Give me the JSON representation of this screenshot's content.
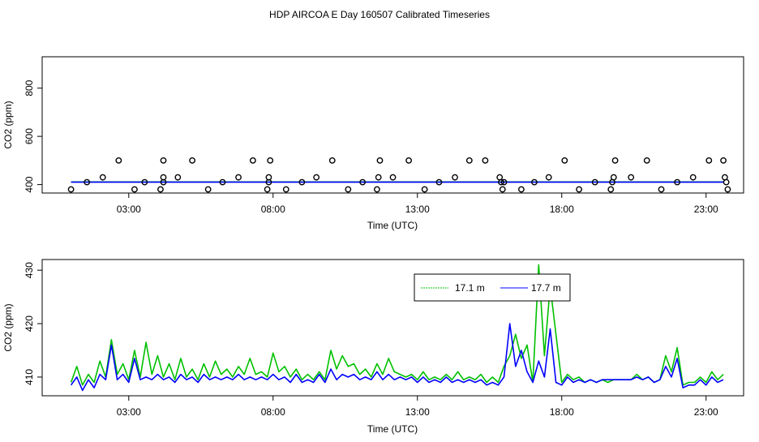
{
  "chart_data": [
    {
      "type": "scatter",
      "title": "HDP AIRCOA E  Day 160507  Calibrated Timeseries",
      "xlabel": "Time (UTC)",
      "ylabel": "CO2 (ppm)",
      "xlim": [
        0,
        24.3
      ],
      "ylim": [
        365,
        930
      ],
      "x_ticks": [
        3,
        8,
        13,
        18,
        23
      ],
      "x_tick_labels": [
        "03:00",
        "08:00",
        "13:00",
        "18:00",
        "23:00"
      ],
      "y_ticks": [
        400,
        600,
        800
      ],
      "y_tick_labels": [
        "400",
        "600",
        "800"
      ],
      "calibration_points": {
        "x": [
          1.0,
          1.55,
          2.1,
          2.65,
          3.2,
          3.55,
          4.1,
          4.2,
          4.2,
          4.2,
          4.7,
          5.2,
          5.75,
          6.25,
          6.8,
          7.3,
          7.8,
          7.85,
          7.85,
          7.9,
          8.45,
          9.0,
          9.5,
          10.05,
          10.6,
          11.1,
          11.6,
          11.65,
          11.7,
          12.15,
          12.7,
          13.25,
          13.75,
          14.3,
          14.8,
          15.35,
          15.85,
          15.9,
          15.95,
          16.0,
          16.6,
          17.05,
          17.55,
          18.1,
          18.6,
          19.15,
          19.7,
          19.75,
          19.8,
          19.85,
          20.4,
          20.95,
          21.45,
          22.0,
          22.55,
          23.1,
          23.6,
          23.65,
          23.7,
          23.75
        ],
        "y": [
          380,
          410,
          430,
          500,
          380,
          410,
          380,
          410,
          430,
          500,
          430,
          500,
          380,
          410,
          430,
          500,
          380,
          410,
          430,
          500,
          380,
          410,
          430,
          500,
          380,
          410,
          380,
          430,
          500,
          430,
          500,
          380,
          410,
          430,
          500,
          500,
          430,
          410,
          380,
          410,
          380,
          410,
          430,
          500,
          380,
          410,
          380,
          410,
          430,
          500,
          430,
          500,
          380,
          410,
          430,
          500,
          500,
          430,
          410,
          380
        ]
      },
      "series": [
        {
          "name": "17.1 m",
          "color": "#00c000",
          "x": [
            1,
            23.6
          ],
          "y": [
            411,
            411
          ]
        },
        {
          "name": "17.7 m",
          "color": "#0000ff",
          "x": [
            1,
            23.6
          ],
          "y": [
            410,
            410
          ]
        }
      ]
    },
    {
      "type": "line",
      "title": "",
      "xlabel": "Time (UTC)",
      "ylabel": "CO2 (ppm)",
      "xlim": [
        0,
        24.3
      ],
      "ylim": [
        406.5,
        432
      ],
      "x_ticks": [
        3,
        8,
        13,
        18,
        23
      ],
      "x_tick_labels": [
        "03:00",
        "08:00",
        "13:00",
        "18:00",
        "23:00"
      ],
      "y_ticks": [
        410,
        420,
        430
      ],
      "y_tick_labels": [
        "410",
        "420",
        "430"
      ],
      "legend": "top-center",
      "series": [
        {
          "name": "17.1 m",
          "color": "#00c000",
          "x": [
            1.0,
            1.2,
            1.4,
            1.6,
            1.8,
            2.0,
            2.2,
            2.4,
            2.6,
            2.8,
            3.0,
            3.2,
            3.4,
            3.6,
            3.8,
            4.0,
            4.2,
            4.4,
            4.6,
            4.8,
            5.0,
            5.2,
            5.4,
            5.6,
            5.8,
            6.0,
            6.2,
            6.4,
            6.6,
            6.8,
            7.0,
            7.2,
            7.4,
            7.6,
            7.8,
            8.0,
            8.2,
            8.4,
            8.6,
            8.8,
            9.0,
            9.2,
            9.4,
            9.6,
            9.8,
            10.0,
            10.2,
            10.4,
            10.6,
            10.8,
            11.0,
            11.2,
            11.4,
            11.6,
            11.8,
            12.0,
            12.2,
            12.4,
            12.6,
            12.8,
            13.0,
            13.2,
            13.4,
            13.6,
            13.8,
            14.0,
            14.2,
            14.4,
            14.6,
            14.8,
            15.0,
            15.2,
            15.4,
            15.6,
            15.8,
            16.0,
            16.2,
            16.4,
            16.6,
            16.8,
            17.0,
            17.2,
            17.4,
            17.6,
            17.8,
            18.0,
            18.2,
            18.4,
            18.6,
            18.8,
            19.0,
            19.2,
            19.4,
            19.6,
            19.8,
            20.0,
            20.2,
            20.4,
            20.6,
            20.8,
            21.0,
            21.2,
            21.4,
            21.6,
            21.8,
            22.0,
            22.2,
            22.4,
            22.6,
            22.8,
            23.0,
            23.2,
            23.4,
            23.6
          ],
          "y": [
            409.0,
            412.0,
            408.5,
            410.5,
            409.0,
            413.0,
            410.0,
            417.0,
            410.5,
            412.5,
            409.5,
            415.0,
            410.0,
            416.5,
            410.5,
            414.0,
            410.0,
            412.5,
            409.5,
            413.5,
            410.0,
            411.5,
            409.5,
            412.5,
            410.0,
            413.0,
            410.5,
            411.5,
            410.0,
            412.0,
            410.5,
            413.5,
            410.5,
            411.0,
            410.0,
            414.5,
            411.0,
            412.0,
            410.0,
            411.5,
            409.5,
            410.5,
            409.5,
            411.0,
            409.5,
            415.0,
            411.5,
            414.0,
            412.0,
            412.5,
            410.5,
            411.5,
            410.0,
            412.5,
            410.5,
            413.5,
            411.0,
            410.5,
            410.0,
            410.5,
            409.5,
            411.0,
            409.5,
            410.0,
            409.5,
            410.5,
            409.5,
            411.0,
            409.5,
            410.0,
            409.5,
            410.5,
            409.0,
            410.0,
            409.0,
            412.0,
            414.0,
            418.0,
            413.5,
            416.0,
            409.0,
            431.0,
            414.0,
            427.0,
            418.0,
            409.0,
            410.5,
            409.5,
            410.0,
            409.0,
            409.5,
            409.0,
            409.5,
            409.0,
            409.5,
            409.5,
            409.5,
            409.5,
            410.5,
            409.5,
            410.0,
            409.0,
            409.5,
            414.0,
            411.0,
            415.5,
            408.5,
            409.0,
            409.0,
            410.0,
            409.0,
            411.0,
            409.5,
            410.5
          ]
        },
        {
          "name": "17.7 m",
          "color": "#0000ff",
          "x": [
            1.0,
            1.2,
            1.4,
            1.6,
            1.8,
            2.0,
            2.2,
            2.4,
            2.6,
            2.8,
            3.0,
            3.2,
            3.4,
            3.6,
            3.8,
            4.0,
            4.2,
            4.4,
            4.6,
            4.8,
            5.0,
            5.2,
            5.4,
            5.6,
            5.8,
            6.0,
            6.2,
            6.4,
            6.6,
            6.8,
            7.0,
            7.2,
            7.4,
            7.6,
            7.8,
            8.0,
            8.2,
            8.4,
            8.6,
            8.8,
            9.0,
            9.2,
            9.4,
            9.6,
            9.8,
            10.0,
            10.2,
            10.4,
            10.6,
            10.8,
            11.0,
            11.2,
            11.4,
            11.6,
            11.8,
            12.0,
            12.2,
            12.4,
            12.6,
            12.8,
            13.0,
            13.2,
            13.4,
            13.6,
            13.8,
            14.0,
            14.2,
            14.4,
            14.6,
            14.8,
            15.0,
            15.2,
            15.4,
            15.6,
            15.8,
            16.0,
            16.2,
            16.4,
            16.6,
            16.8,
            17.0,
            17.2,
            17.4,
            17.6,
            17.8,
            18.0,
            18.2,
            18.4,
            18.6,
            18.8,
            19.0,
            19.2,
            19.4,
            19.6,
            19.8,
            20.0,
            20.2,
            20.4,
            20.6,
            20.8,
            21.0,
            21.2,
            21.4,
            21.6,
            21.8,
            22.0,
            22.2,
            22.4,
            22.6,
            22.8,
            23.0,
            23.2,
            23.4,
            23.6
          ],
          "y": [
            408.5,
            410.0,
            407.5,
            409.5,
            408.0,
            410.5,
            409.5,
            416.0,
            409.5,
            410.5,
            409.0,
            413.5,
            409.5,
            410.0,
            409.5,
            410.5,
            409.5,
            410.0,
            409.0,
            410.5,
            409.5,
            410.0,
            409.0,
            410.5,
            409.5,
            410.0,
            409.5,
            410.0,
            409.5,
            410.5,
            409.5,
            410.0,
            409.5,
            410.0,
            409.5,
            410.5,
            409.5,
            410.0,
            409.0,
            410.5,
            409.0,
            409.5,
            409.0,
            410.5,
            409.0,
            411.5,
            409.5,
            410.5,
            410.0,
            410.5,
            409.5,
            410.0,
            409.5,
            411.0,
            409.5,
            410.5,
            409.5,
            410.0,
            409.5,
            410.0,
            409.0,
            410.0,
            409.0,
            409.5,
            409.0,
            410.0,
            409.0,
            409.5,
            409.0,
            409.5,
            409.0,
            409.5,
            408.5,
            409.0,
            408.5,
            410.0,
            420.0,
            412.0,
            415.0,
            411.0,
            409.0,
            413.0,
            410.0,
            419.0,
            409.0,
            408.5,
            410.0,
            409.0,
            409.5,
            409.0,
            409.5,
            409.0,
            409.5,
            409.5,
            409.5,
            409.5,
            409.5,
            409.5,
            410.0,
            409.5,
            410.0,
            409.0,
            409.5,
            412.0,
            410.0,
            413.5,
            408.0,
            408.5,
            408.5,
            409.5,
            408.5,
            410.0,
            409.0,
            409.5
          ]
        }
      ]
    }
  ]
}
